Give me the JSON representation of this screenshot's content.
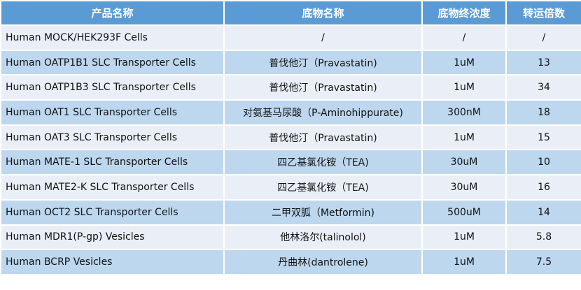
{
  "headers": [
    "产品名称",
    "底物名称",
    "底物终浓度",
    "转运倍数"
  ],
  "rows": [
    [
      "Human MOCK/HEK293F Cells",
      "/",
      "/",
      "/"
    ],
    [
      "Human OATP1B1 SLC Transporter Cells",
      "普伐他汀（Pravastatin)",
      "1uM",
      "13"
    ],
    [
      "Human OATP1B3 SLC Transporter Cells",
      "普伐他汀（Pravastatin)",
      "1uM",
      "34"
    ],
    [
      "Human OAT1 SLC Transporter Cells",
      "对氨基马尿酸（P-Aminohippurate)",
      "300nM",
      "18"
    ],
    [
      "Human OAT3 SLC Transporter Cells",
      "普伐他汀（Pravastatin)",
      "1uM",
      "15"
    ],
    [
      "Human MATE-1 SLC Transporter Cells",
      "四乙基氯化铵（TEA)",
      "30uM",
      "10"
    ],
    [
      "Human MATE2-K SLC Transporter Cells",
      "四乙基氯化铵（TEA)",
      "30uM",
      "16"
    ],
    [
      "Human OCT2 SLC Transporter Cells",
      "二甲双胍（Metformin)",
      "500uM",
      "14"
    ],
    [
      "Human MDR1(P-gp) Vesicles",
      "他林洛尔(talinolol)",
      "1uM",
      "5.8"
    ],
    [
      "Human BCRP Vesicles",
      "丹曲林(dantrolene)",
      "1uM",
      "7.5"
    ]
  ],
  "colors": {
    "header": "#5b9bd5",
    "row_light": "#eaeff7",
    "row_dark": "#bdd7ee"
  }
}
